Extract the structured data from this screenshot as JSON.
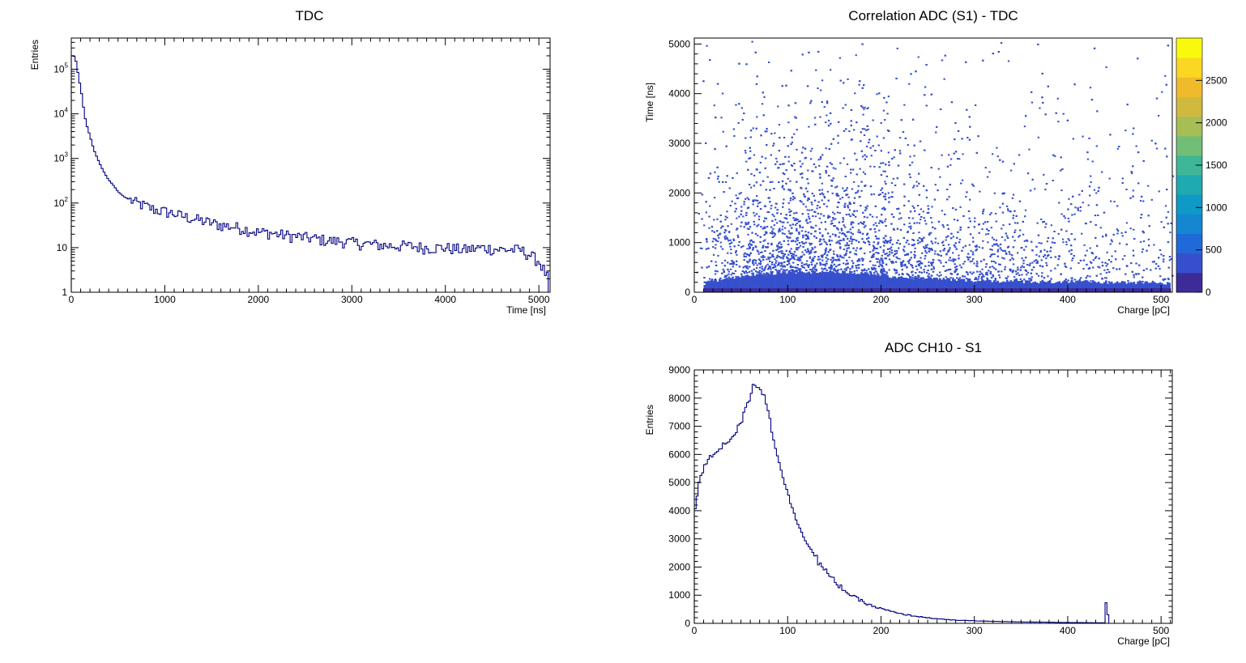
{
  "chart_data": [
    {
      "id": "tdc",
      "type": "histogram",
      "title": "TDC",
      "xlabel": "Time [ns]",
      "ylabel": "Entries",
      "xlim": [
        0,
        5120
      ],
      "ylim": [
        1,
        500000
      ],
      "log_y": true,
      "grid": false,
      "legend": "none",
      "line_color": "#000080",
      "x_ticks": [
        "0",
        "1000",
        "2000",
        "3000",
        "4000",
        "5000"
      ],
      "y_ticks": [
        "1",
        "10",
        "10^2",
        "10^3",
        "10^4",
        "10^5"
      ],
      "bin_width": 20,
      "points": [
        [
          0,
          200000
        ],
        [
          20,
          200000
        ],
        [
          40,
          190000
        ],
        [
          60,
          120000
        ],
        [
          80,
          60000
        ],
        [
          100,
          40000
        ],
        [
          120,
          20000
        ],
        [
          140,
          10000
        ],
        [
          160,
          6000
        ],
        [
          200,
          3200
        ],
        [
          240,
          1600
        ],
        [
          280,
          1000
        ],
        [
          320,
          650
        ],
        [
          360,
          450
        ],
        [
          400,
          330
        ],
        [
          450,
          250
        ],
        [
          500,
          180
        ],
        [
          560,
          140
        ],
        [
          620,
          120
        ],
        [
          700,
          100
        ],
        [
          800,
          85
        ],
        [
          900,
          70
        ],
        [
          1000,
          65
        ],
        [
          1100,
          58
        ],
        [
          1200,
          50
        ],
        [
          1300,
          45
        ],
        [
          1400,
          40
        ],
        [
          1500,
          36
        ],
        [
          1600,
          32
        ],
        [
          1700,
          30
        ],
        [
          1800,
          28
        ],
        [
          1900,
          25
        ],
        [
          2000,
          22
        ],
        [
          2100,
          22
        ],
        [
          2200,
          20
        ],
        [
          2300,
          19
        ],
        [
          2400,
          18
        ],
        [
          2500,
          17
        ],
        [
          2600,
          16
        ],
        [
          2700,
          15
        ],
        [
          2800,
          14
        ],
        [
          2900,
          14
        ],
        [
          3000,
          13
        ],
        [
          3200,
          12
        ],
        [
          3400,
          11
        ],
        [
          3600,
          11
        ],
        [
          3800,
          10
        ],
        [
          4000,
          10
        ],
        [
          4200,
          9
        ],
        [
          4400,
          10
        ],
        [
          4600,
          9
        ],
        [
          4800,
          9
        ],
        [
          4900,
          7
        ],
        [
          5000,
          5
        ],
        [
          5060,
          3
        ],
        [
          5100,
          2
        ]
      ]
    },
    {
      "id": "correlation",
      "type": "heatmap",
      "title": "Correlation ADC (S1) - TDC",
      "xlabel": "Charge [pC]",
      "ylabel": "Time [ns]",
      "xlim": [
        0,
        512
      ],
      "ylim": [
        0,
        5120
      ],
      "x_ticks": [
        "0",
        "100",
        "200",
        "300",
        "400",
        "500"
      ],
      "y_ticks": [
        "0",
        "1000",
        "2000",
        "3000",
        "4000",
        "5000"
      ],
      "z_ticks": [
        "0",
        "500",
        "1000",
        "1500",
        "2000",
        "2500"
      ],
      "zlim": [
        0,
        3000
      ],
      "palette": [
        "#3d2c97",
        "#3650cd",
        "#1f6ad8",
        "#1486d2",
        "#0f99c6",
        "#1fa9b0",
        "#3fb696",
        "#72be76",
        "#a6be54",
        "#d0b93e",
        "#f0bb2b",
        "#fbd622",
        "#f9f90e"
      ],
      "density_profile": [
        [
          0,
          0.0
        ],
        [
          10,
          0.15
        ],
        [
          30,
          0.45
        ],
        [
          60,
          0.75
        ],
        [
          100,
          1.0
        ],
        [
          140,
          1.0
        ],
        [
          180,
          0.85
        ],
        [
          220,
          0.6
        ],
        [
          260,
          0.45
        ],
        [
          300,
          0.35
        ],
        [
          350,
          0.28
        ],
        [
          400,
          0.25
        ],
        [
          450,
          0.2
        ],
        [
          500,
          0.18
        ]
      ],
      "core_band_ns": 300
    },
    {
      "id": "adc",
      "type": "histogram",
      "title": "ADC CH10 - S1",
      "xlabel": "Charge [pC]",
      "ylabel": "Entries",
      "xlim": [
        0,
        512
      ],
      "ylim": [
        0,
        9000
      ],
      "log_y": false,
      "grid": false,
      "legend": "none",
      "line_color": "#000080",
      "x_ticks": [
        "0",
        "100",
        "200",
        "300",
        "400",
        "500"
      ],
      "y_ticks": [
        "0",
        "1000",
        "2000",
        "3000",
        "4000",
        "5000",
        "6000",
        "7000",
        "8000",
        "9000"
      ],
      "bin_width": 2,
      "points": [
        [
          0,
          3800
        ],
        [
          2,
          4300
        ],
        [
          5,
          5000
        ],
        [
          10,
          5500
        ],
        [
          15,
          5800
        ],
        [
          20,
          6000
        ],
        [
          30,
          6300
        ],
        [
          40,
          6600
        ],
        [
          50,
          7100
        ],
        [
          55,
          7600
        ],
        [
          60,
          8100
        ],
        [
          64,
          8550
        ],
        [
          68,
          8450
        ],
        [
          72,
          8300
        ],
        [
          76,
          8000
        ],
        [
          80,
          7400
        ],
        [
          85,
          6500
        ],
        [
          90,
          5900
        ],
        [
          95,
          5200
        ],
        [
          100,
          4600
        ],
        [
          110,
          3600
        ],
        [
          120,
          2900
        ],
        [
          130,
          2350
        ],
        [
          140,
          1850
        ],
        [
          150,
          1500
        ],
        [
          160,
          1200
        ],
        [
          170,
          950
        ],
        [
          180,
          780
        ],
        [
          190,
          620
        ],
        [
          200,
          520
        ],
        [
          220,
          340
        ],
        [
          240,
          240
        ],
        [
          260,
          160
        ],
        [
          280,
          110
        ],
        [
          300,
          90
        ],
        [
          320,
          70
        ],
        [
          350,
          50
        ],
        [
          380,
          40
        ],
        [
          400,
          30
        ],
        [
          430,
          20
        ],
        [
          440,
          20
        ],
        [
          441,
          700
        ],
        [
          443,
          300
        ],
        [
          445,
          0
        ],
        [
          512,
          0
        ]
      ]
    }
  ]
}
